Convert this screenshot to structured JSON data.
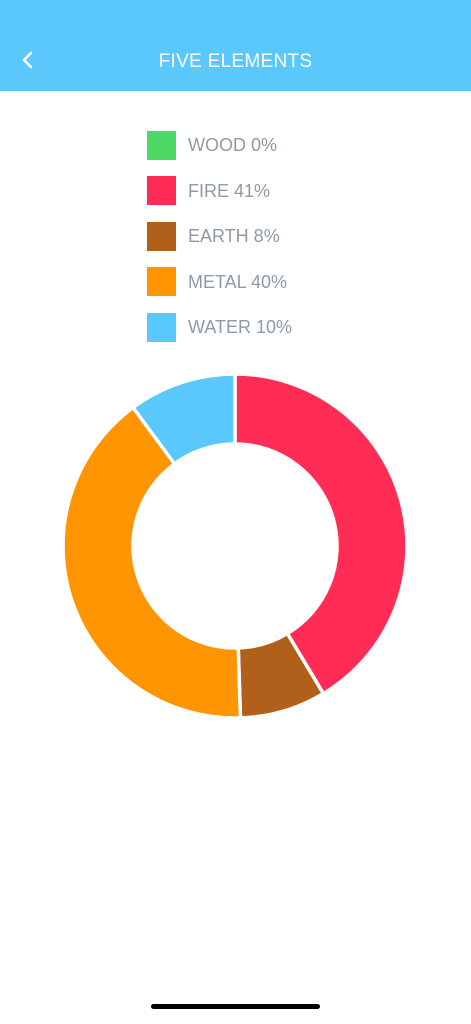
{
  "header": {
    "title": "FIVE ELEMENTS",
    "back_icon": "chevron-left-icon",
    "background_color": "#5ac8fa"
  },
  "chart_data": {
    "type": "pie",
    "style": "donut",
    "categories": [
      "WOOD",
      "FIRE",
      "EARTH",
      "METAL",
      "WATER"
    ],
    "values": [
      0,
      41,
      8,
      40,
      10
    ],
    "legend_labels": [
      "WOOD 0%",
      "FIRE 41%",
      "EARTH 8%",
      "METAL 40%",
      "WATER 10%"
    ],
    "colors": [
      "#4cd964",
      "#ff2d55",
      "#b1601c",
      "#ff9500",
      "#5ac8fa"
    ],
    "legend_position": "top",
    "title": ""
  }
}
